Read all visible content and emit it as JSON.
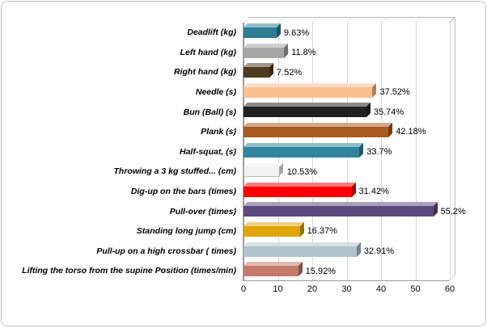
{
  "chart": {
    "background": "#FFFFFF",
    "border_color": "#C3C3C3",
    "gridline_color": "#D6D6D6",
    "wall_edge_color": "#BDBDBD"
  },
  "chart_data": {
    "type": "bar",
    "orientation": "horizontal",
    "style": "3d",
    "title": "",
    "xlabel": "",
    "ylabel": "",
    "xlim": [
      0,
      60
    ],
    "xticks": [
      0,
      10,
      20,
      30,
      40,
      50,
      60
    ],
    "grid": true,
    "legend": "none",
    "categories": [
      "Deadlift (kg)",
      "Left hand (kg)",
      "Right hand (kg)",
      "Needle (s)",
      "Bun (Ball) (s)",
      "Plank (s)",
      "Half-squat, (s)",
      "Throwing a 3 kg stuffed... (cm)",
      "Dig-up on the bars (times)",
      "Pull-over (times)",
      "Standing long jump (cm)",
      "Pull-up on a high crossbar ( times)",
      "Lifting the torso from the supine Position (times/min)"
    ],
    "values": [
      9.63,
      11.8,
      7.52,
      37.52,
      35.74,
      42.18,
      33.7,
      10.53,
      31.42,
      55.2,
      16.37,
      32.91,
      15.92
    ],
    "data_labels": [
      "9.63%",
      "11.8%",
      "7.52%",
      "37.52%",
      "35.74%",
      "42.18%",
      "33.7%",
      "10.53%",
      "31.42%",
      "55.2%",
      "16.37%",
      "32.91%",
      "15.92%"
    ],
    "bar_colors": [
      "#2F7C95",
      "#A6A6A6",
      "#4F3B1F",
      "#FAC090",
      "#212121",
      "#A85B1E",
      "#31859B",
      "#F2F2F2",
      "#FE0000",
      "#5C4A7D",
      "#DFA609",
      "#AFC3CC",
      "#C57A6C"
    ]
  }
}
